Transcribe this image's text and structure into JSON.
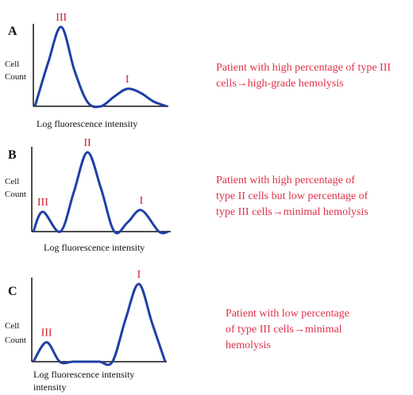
{
  "colors": {
    "curve": "#1f3fa6",
    "axis": "#111111",
    "peak_label": "#cc1f2e",
    "note": "#e0304a"
  },
  "chart_data": [
    {
      "type": "line",
      "panel": "A",
      "ylabel": [
        "Cell",
        "Count"
      ],
      "xlabel": [
        "Log fluorescence intensity"
      ],
      "x": [
        0,
        0.1,
        0.2,
        0.3,
        0.4,
        0.5,
        0.6,
        0.7,
        0.8,
        0.9,
        1
      ],
      "values": [
        0,
        0.55,
        1.0,
        0.45,
        0.05,
        0.0,
        0.12,
        0.22,
        0.17,
        0.06,
        0
      ],
      "peaks": [
        {
          "label": "III",
          "x": 0.2,
          "y": 1.0
        },
        {
          "label": "I",
          "x": 0.7,
          "y": 0.22
        }
      ],
      "note": [
        "Patient with high percentage of type III",
        "cells→high-grade hemolysis"
      ]
    },
    {
      "type": "line",
      "panel": "B",
      "ylabel": [
        "Cell",
        "Count"
      ],
      "xlabel": [
        "Log fluorescence intensity"
      ],
      "x": [
        0,
        0.07,
        0.2,
        0.3,
        0.4,
        0.5,
        0.6,
        0.7,
        0.8,
        0.93,
        1
      ],
      "values": [
        0,
        0.25,
        0.0,
        0.5,
        1.0,
        0.55,
        0.0,
        0.12,
        0.27,
        0.0,
        0
      ],
      "peaks": [
        {
          "label": "III",
          "x": 0.07,
          "y": 0.25
        },
        {
          "label": "II",
          "x": 0.4,
          "y": 1.0
        },
        {
          "label": "I",
          "x": 0.8,
          "y": 0.27
        }
      ],
      "note": [
        "Patient with high percentage of",
        "type II cells but low percentage of",
        "type III cells→minimal hemolysis"
      ]
    },
    {
      "type": "line",
      "panel": "C",
      "ylabel": [
        "Cell",
        "Count"
      ],
      "xlabel": [
        "Log fluorescence intensity",
        "intensity"
      ],
      "x": [
        0,
        0.1,
        0.2,
        0.3,
        0.4,
        0.5,
        0.6,
        0.7,
        0.8,
        0.9,
        1
      ],
      "values": [
        0,
        0.25,
        0.0,
        0.0,
        0.0,
        0.0,
        0.0,
        0.55,
        1.0,
        0.5,
        0
      ],
      "peaks": [
        {
          "label": "III",
          "x": 0.1,
          "y": 0.25
        },
        {
          "label": "I",
          "x": 0.8,
          "y": 1.0
        }
      ],
      "note": [
        "Patient with low percentage",
        "of type III cells→minimal",
        "hemolysis"
      ]
    }
  ]
}
